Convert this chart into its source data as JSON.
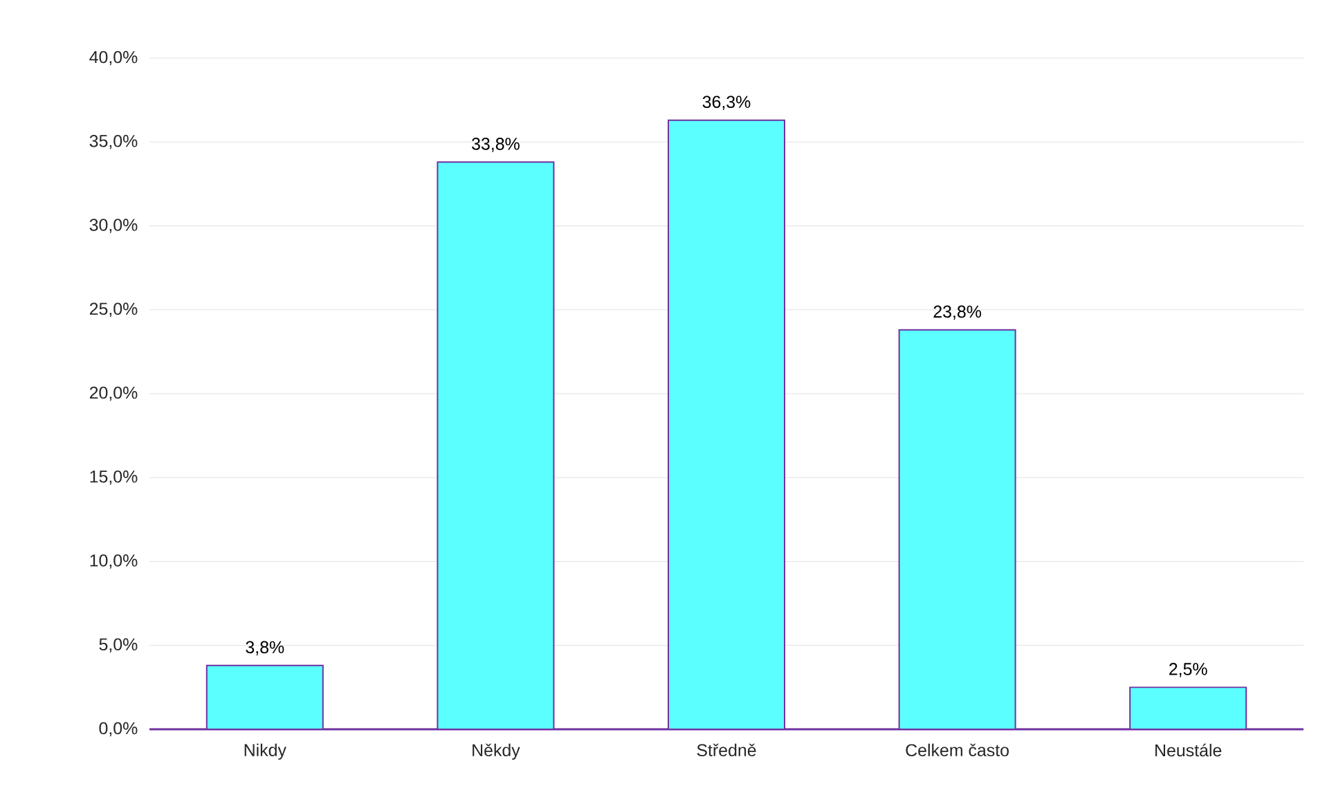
{
  "chart_data": {
    "type": "bar",
    "categories": [
      "Nikdy",
      "Někdy",
      "Středně",
      "Celkem často",
      "Neustále"
    ],
    "values": [
      3.8,
      33.8,
      36.3,
      23.8,
      2.5
    ],
    "value_labels": [
      "3,8%",
      "33,8%",
      "36,3%",
      "23,8%",
      "2,5%"
    ],
    "color": "#5bffff",
    "ylim": [
      0,
      40
    ],
    "yticks": [
      {
        "value": 0,
        "label": "0,0%"
      },
      {
        "value": 5,
        "label": "5,0%"
      },
      {
        "value": 10,
        "label": "10,0%"
      },
      {
        "value": 15,
        "label": "15,0%"
      },
      {
        "value": 20,
        "label": "20,0%"
      },
      {
        "value": 25,
        "label": "25,0%"
      },
      {
        "value": 30,
        "label": "30,0%"
      },
      {
        "value": 35,
        "label": "35,0%"
      },
      {
        "value": 40,
        "label": "40,0%"
      }
    ],
    "grid": "y"
  }
}
